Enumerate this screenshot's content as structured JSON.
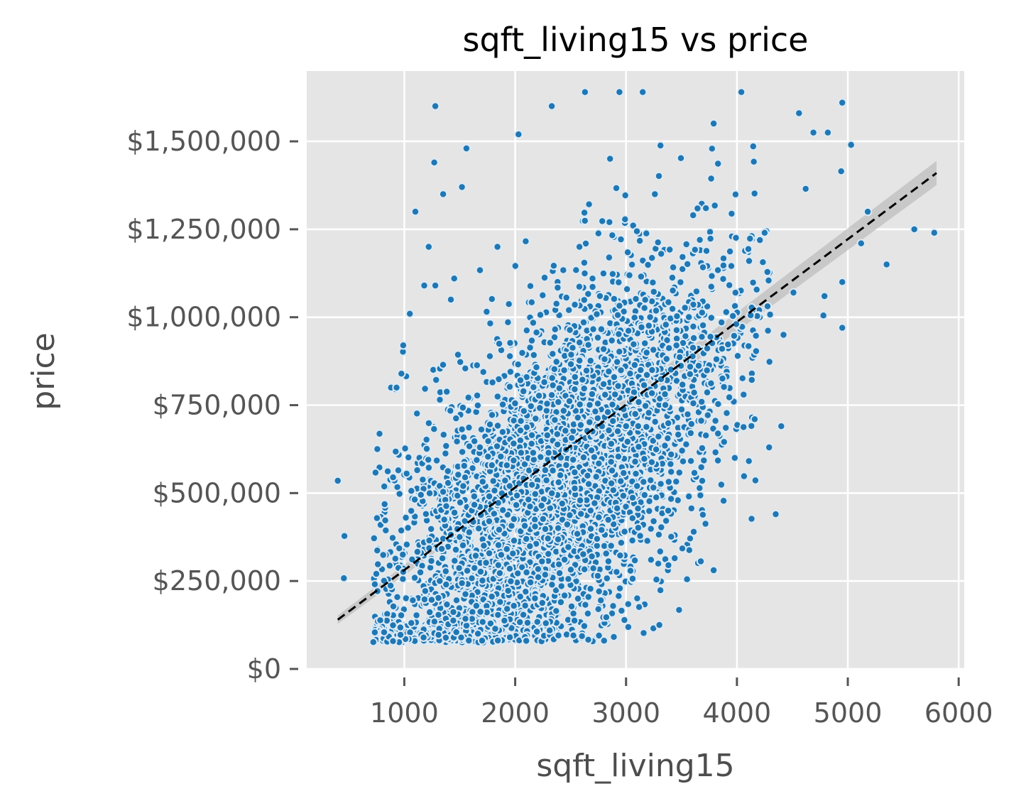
{
  "chart_data": {
    "type": "scatter",
    "title": "sqft_living15 vs price",
    "xlabel": "sqft_living15",
    "ylabel": "price",
    "xlim": [
      120,
      6050
    ],
    "ylim": [
      0,
      1700000
    ],
    "x_ticks": [
      {
        "value": 1000,
        "label": "1000"
      },
      {
        "value": 2000,
        "label": "2000"
      },
      {
        "value": 3000,
        "label": "3000"
      },
      {
        "value": 4000,
        "label": "4000"
      },
      {
        "value": 5000,
        "label": "5000"
      },
      {
        "value": 6000,
        "label": "6000"
      }
    ],
    "y_ticks": [
      {
        "value": 0,
        "label": "$0"
      },
      {
        "value": 250000,
        "label": "$250,000"
      },
      {
        "value": 500000,
        "label": "$500,000"
      },
      {
        "value": 750000,
        "label": "$750,000"
      },
      {
        "value": 1000000,
        "label": "$1,000,000"
      },
      {
        "value": 1250000,
        "label": "$1,250,000"
      },
      {
        "value": 1500000,
        "label": "$1,500,000"
      }
    ],
    "grid": true,
    "background": "#e5e5e5",
    "point_color": "#1f77b4",
    "point_edge_color": "#dceaf5",
    "fit_line": {
      "x": [
        400,
        5800
      ],
      "y": [
        140000,
        1410000
      ],
      "color": "#000000",
      "style": "dashed",
      "ci_color": "#bdbdbd"
    },
    "series": [
      {
        "points": [
          [
            400,
            535000
          ],
          [
            460,
            378000
          ],
          [
            455,
            258000
          ],
          [
            1280,
            1600000
          ],
          [
            1220,
            1200000
          ],
          [
            1100,
            1300000
          ],
          [
            1350,
            1350000
          ],
          [
            1520,
            1370000
          ],
          [
            1270,
            1440000
          ],
          [
            1560,
            1480000
          ],
          [
            5600,
            1250000
          ],
          [
            5780,
            1240000
          ],
          [
            5350,
            1150000
          ],
          [
            5120,
            1210000
          ],
          [
            4950,
            970000
          ],
          [
            4780,
            1005000
          ],
          [
            4950,
            1100000
          ],
          [
            5180,
            1300000
          ],
          [
            4350,
            440000
          ],
          [
            4290,
            630000
          ],
          [
            3550,
            255000
          ],
          [
            3300,
            125000
          ],
          [
            2100,
            80000
          ],
          [
            4950,
            1610000
          ],
          [
            5030,
            1490000
          ],
          [
            4940,
            1415000
          ],
          [
            4620,
            1365000
          ],
          [
            4820,
            1525000
          ],
          [
            4690,
            1525000
          ],
          [
            4560,
            1580000
          ],
          [
            4040,
            1640000
          ],
          [
            2630,
            1640000
          ],
          [
            3150,
            1640000
          ],
          [
            2940,
            1640000
          ],
          [
            880,
            800000
          ],
          [
            930,
            800000
          ],
          [
            1050,
            1010000
          ],
          [
            990,
            920000
          ],
          [
            3980,
            600000
          ],
          [
            4160,
            710000
          ],
          [
            4060,
            780000
          ],
          [
            1180,
            1090000
          ],
          [
            1280,
            1090000
          ],
          [
            1420,
            1050000
          ],
          [
            1450,
            1110000
          ],
          [
            4400,
            690000
          ],
          [
            4420,
            950000
          ],
          [
            3610,
            390000
          ],
          [
            3380,
            450000
          ],
          [
            2750,
            170000
          ],
          [
            2370,
            165000
          ],
          [
            2580,
            1200000
          ],
          [
            1840,
            1200000
          ],
          [
            2030,
            1520000
          ],
          [
            2330,
            1600000
          ],
          [
            3260,
            1350000
          ],
          [
            3720,
            1310000
          ],
          [
            4250,
            1240000
          ],
          [
            4510,
            1070000
          ],
          [
            4790,
            1060000
          ]
        ]
      }
    ]
  }
}
